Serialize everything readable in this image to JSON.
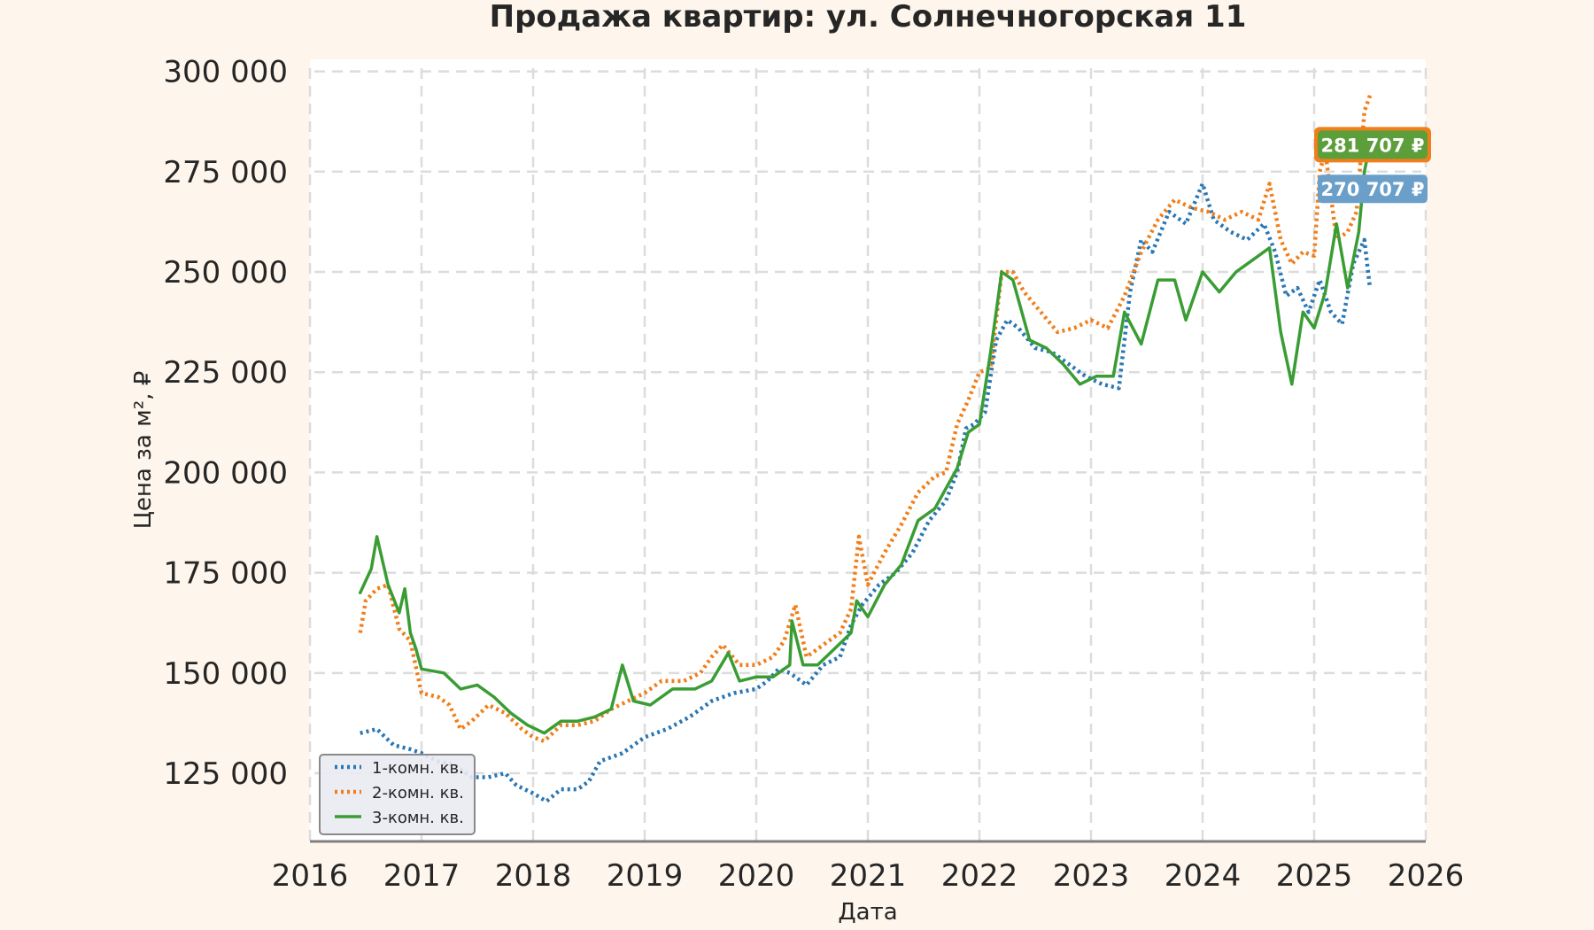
{
  "chart_data": {
    "type": "line",
    "title": "Продажа квартир: ул. Солнечногорская 11",
    "xlabel": "Дата",
    "ylabel": "Цена за м², ₽",
    "xlim": [
      2016,
      2026
    ],
    "ylim": [
      108000,
      303000
    ],
    "x_ticks": [
      "2016",
      "2017",
      "2018",
      "2019",
      "2020",
      "2021",
      "2022",
      "2023",
      "2024",
      "2025",
      "2026"
    ],
    "y_ticks": [
      "125 000",
      "150 000",
      "175 000",
      "200 000",
      "225 000",
      "250 000",
      "275 000",
      "300 000"
    ],
    "grid": true,
    "legend_position": "lower-left",
    "series": [
      {
        "name": "1-комн. кв.",
        "color": "#2a77b4",
        "style": "dotted",
        "points": [
          [
            2016.45,
            135000
          ],
          [
            2016.6,
            136000
          ],
          [
            2016.75,
            132000
          ],
          [
            2016.9,
            131000
          ],
          [
            2017.0,
            130000
          ],
          [
            2017.15,
            128000
          ],
          [
            2017.3,
            127000
          ],
          [
            2017.45,
            124000
          ],
          [
            2017.6,
            124000
          ],
          [
            2017.75,
            125000
          ],
          [
            2017.85,
            122000
          ],
          [
            2018.0,
            120000
          ],
          [
            2018.12,
            118000
          ],
          [
            2018.25,
            121000
          ],
          [
            2018.4,
            121000
          ],
          [
            2018.5,
            123000
          ],
          [
            2018.6,
            128000
          ],
          [
            2018.8,
            130000
          ],
          [
            2019.0,
            134000
          ],
          [
            2019.2,
            136000
          ],
          [
            2019.4,
            139000
          ],
          [
            2019.6,
            143000
          ],
          [
            2019.8,
            145000
          ],
          [
            2020.0,
            146000
          ],
          [
            2020.1,
            148000
          ],
          [
            2020.2,
            151000
          ],
          [
            2020.3,
            150000
          ],
          [
            2020.45,
            147000
          ],
          [
            2020.6,
            152000
          ],
          [
            2020.75,
            154000
          ],
          [
            2020.85,
            162000
          ],
          [
            2020.95,
            167000
          ],
          [
            2021.1,
            172000
          ],
          [
            2021.25,
            175000
          ],
          [
            2021.4,
            180000
          ],
          [
            2021.55,
            188000
          ],
          [
            2021.7,
            193000
          ],
          [
            2021.8,
            200000
          ],
          [
            2021.88,
            211000
          ],
          [
            2021.95,
            212000
          ],
          [
            2022.05,
            215000
          ],
          [
            2022.15,
            233000
          ],
          [
            2022.25,
            238000
          ],
          [
            2022.35,
            236000
          ],
          [
            2022.5,
            231000
          ],
          [
            2022.65,
            230000
          ],
          [
            2022.8,
            227000
          ],
          [
            2022.95,
            224000
          ],
          [
            2023.1,
            222000
          ],
          [
            2023.25,
            221000
          ],
          [
            2023.35,
            245000
          ],
          [
            2023.45,
            258000
          ],
          [
            2023.55,
            255000
          ],
          [
            2023.7,
            265000
          ],
          [
            2023.85,
            262000
          ],
          [
            2024.0,
            272000
          ],
          [
            2024.1,
            263000
          ],
          [
            2024.25,
            260000
          ],
          [
            2024.4,
            258000
          ],
          [
            2024.55,
            262000
          ],
          [
            2024.65,
            255000
          ],
          [
            2024.75,
            244000
          ],
          [
            2024.85,
            246000
          ],
          [
            2024.95,
            240000
          ],
          [
            2025.05,
            248000
          ],
          [
            2025.15,
            240000
          ],
          [
            2025.25,
            237000
          ],
          [
            2025.35,
            252000
          ],
          [
            2025.45,
            258000
          ],
          [
            2025.5,
            246000
          ]
        ]
      },
      {
        "name": "2-комн. кв.",
        "color": "#f07f1b",
        "style": "dotted",
        "points": [
          [
            2016.45,
            160000
          ],
          [
            2016.5,
            168000
          ],
          [
            2016.6,
            171000
          ],
          [
            2016.7,
            172000
          ],
          [
            2016.8,
            161000
          ],
          [
            2016.9,
            158000
          ],
          [
            2017.0,
            145000
          ],
          [
            2017.15,
            144000
          ],
          [
            2017.25,
            142000
          ],
          [
            2017.35,
            136000
          ],
          [
            2017.45,
            138000
          ],
          [
            2017.6,
            142000
          ],
          [
            2017.75,
            140000
          ],
          [
            2017.9,
            136000
          ],
          [
            2018.0,
            134000
          ],
          [
            2018.1,
            133000
          ],
          [
            2018.25,
            137000
          ],
          [
            2018.4,
            137000
          ],
          [
            2018.55,
            138000
          ],
          [
            2018.7,
            141000
          ],
          [
            2018.85,
            143000
          ],
          [
            2019.0,
            145000
          ],
          [
            2019.15,
            148000
          ],
          [
            2019.35,
            148000
          ],
          [
            2019.5,
            150000
          ],
          [
            2019.6,
            154000
          ],
          [
            2019.7,
            157000
          ],
          [
            2019.85,
            152000
          ],
          [
            2020.0,
            152000
          ],
          [
            2020.15,
            154000
          ],
          [
            2020.25,
            158000
          ],
          [
            2020.35,
            167000
          ],
          [
            2020.45,
            154000
          ],
          [
            2020.6,
            157000
          ],
          [
            2020.75,
            160000
          ],
          [
            2020.85,
            166000
          ],
          [
            2020.92,
            184000
          ],
          [
            2021.0,
            172000
          ],
          [
            2021.15,
            180000
          ],
          [
            2021.3,
            187000
          ],
          [
            2021.45,
            195000
          ],
          [
            2021.6,
            199000
          ],
          [
            2021.7,
            200000
          ],
          [
            2021.8,
            212000
          ],
          [
            2021.9,
            218000
          ],
          [
            2022.0,
            225000
          ],
          [
            2022.1,
            226000
          ],
          [
            2022.2,
            250000
          ],
          [
            2022.3,
            250000
          ],
          [
            2022.4,
            245000
          ],
          [
            2022.55,
            240000
          ],
          [
            2022.7,
            235000
          ],
          [
            2022.85,
            236000
          ],
          [
            2023.0,
            238000
          ],
          [
            2023.15,
            236000
          ],
          [
            2023.3,
            244000
          ],
          [
            2023.45,
            255000
          ],
          [
            2023.6,
            263000
          ],
          [
            2023.75,
            268000
          ],
          [
            2023.9,
            266000
          ],
          [
            2024.05,
            265000
          ],
          [
            2024.2,
            263000
          ],
          [
            2024.35,
            265000
          ],
          [
            2024.5,
            263000
          ],
          [
            2024.6,
            272000
          ],
          [
            2024.7,
            258000
          ],
          [
            2024.8,
            252000
          ],
          [
            2024.9,
            255000
          ],
          [
            2025.0,
            254000
          ],
          [
            2025.05,
            275000
          ],
          [
            2025.1,
            280000
          ],
          [
            2025.2,
            258000
          ],
          [
            2025.3,
            260000
          ],
          [
            2025.38,
            265000
          ],
          [
            2025.45,
            290000
          ],
          [
            2025.5,
            294000
          ]
        ]
      },
      {
        "name": "3-комн. кв.",
        "color": "#3a9d34",
        "style": "solid",
        "points": [
          [
            2016.45,
            170000
          ],
          [
            2016.55,
            176000
          ],
          [
            2016.6,
            184000
          ],
          [
            2016.7,
            172000
          ],
          [
            2016.8,
            165000
          ],
          [
            2016.85,
            171000
          ],
          [
            2016.9,
            160000
          ],
          [
            2016.95,
            156000
          ],
          [
            2017.0,
            151000
          ],
          [
            2017.2,
            150000
          ],
          [
            2017.35,
            146000
          ],
          [
            2017.5,
            147000
          ],
          [
            2017.65,
            144000
          ],
          [
            2017.8,
            140000
          ],
          [
            2017.95,
            137000
          ],
          [
            2018.1,
            135000
          ],
          [
            2018.25,
            138000
          ],
          [
            2018.4,
            138000
          ],
          [
            2018.55,
            139000
          ],
          [
            2018.7,
            141000
          ],
          [
            2018.8,
            152000
          ],
          [
            2018.9,
            143000
          ],
          [
            2019.05,
            142000
          ],
          [
            2019.25,
            146000
          ],
          [
            2019.45,
            146000
          ],
          [
            2019.6,
            148000
          ],
          [
            2019.75,
            155000
          ],
          [
            2019.85,
            148000
          ],
          [
            2020.0,
            149000
          ],
          [
            2020.15,
            149000
          ],
          [
            2020.3,
            152000
          ],
          [
            2020.32,
            163000
          ],
          [
            2020.42,
            152000
          ],
          [
            2020.55,
            152000
          ],
          [
            2020.7,
            156000
          ],
          [
            2020.85,
            160000
          ],
          [
            2020.9,
            168000
          ],
          [
            2021.0,
            164000
          ],
          [
            2021.15,
            172000
          ],
          [
            2021.3,
            177000
          ],
          [
            2021.45,
            188000
          ],
          [
            2021.6,
            191000
          ],
          [
            2021.7,
            196000
          ],
          [
            2021.8,
            201000
          ],
          [
            2021.9,
            210000
          ],
          [
            2022.0,
            212000
          ],
          [
            2022.1,
            230000
          ],
          [
            2022.2,
            250000
          ],
          [
            2022.3,
            248000
          ],
          [
            2022.45,
            233000
          ],
          [
            2022.6,
            231000
          ],
          [
            2022.75,
            227000
          ],
          [
            2022.9,
            222000
          ],
          [
            2023.05,
            224000
          ],
          [
            2023.2,
            224000
          ],
          [
            2023.3,
            240000
          ],
          [
            2023.45,
            232000
          ],
          [
            2023.6,
            248000
          ],
          [
            2023.75,
            248000
          ],
          [
            2023.85,
            238000
          ],
          [
            2024.0,
            250000
          ],
          [
            2024.15,
            245000
          ],
          [
            2024.3,
            250000
          ],
          [
            2024.45,
            253000
          ],
          [
            2024.6,
            256000
          ],
          [
            2024.7,
            235000
          ],
          [
            2024.8,
            222000
          ],
          [
            2024.9,
            240000
          ],
          [
            2025.0,
            236000
          ],
          [
            2025.1,
            245000
          ],
          [
            2025.2,
            262000
          ],
          [
            2025.3,
            246000
          ],
          [
            2025.4,
            260000
          ],
          [
            2025.45,
            275000
          ],
          [
            2025.5,
            281707
          ]
        ]
      }
    ],
    "annotations": [
      {
        "text": "281 707 ₽",
        "y": 281707,
        "fill": "#5b9e3a",
        "border": "#f07f1b"
      },
      {
        "text": "270 707 ₽",
        "y": 270707,
        "fill": "#6a9fc9",
        "border": "#6a9fc9"
      }
    ]
  }
}
